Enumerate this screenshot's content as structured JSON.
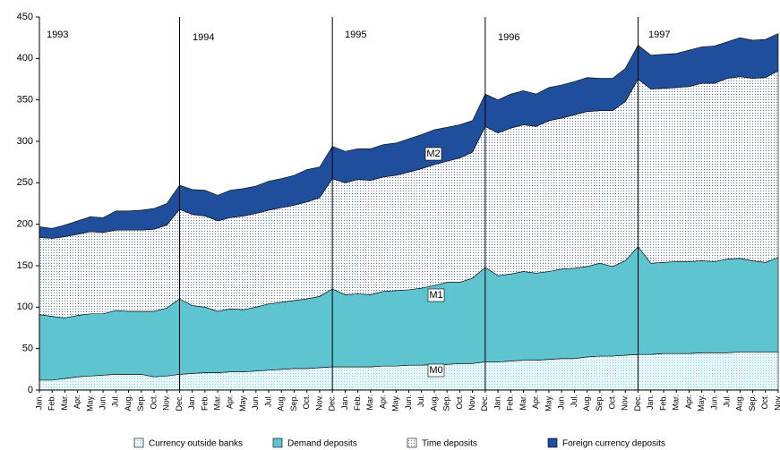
{
  "chart_data": {
    "type": "stacked_area",
    "categories": [
      "Jan.",
      "Feb.",
      "Mar.",
      "Apr.",
      "May.",
      "Jun.",
      "Jul.",
      "Aug.",
      "Sep.",
      "Oct.",
      "Nov.",
      "Dec.",
      "Jan.",
      "Feb.",
      "Mar.",
      "Apr.",
      "May.",
      "Jun.",
      "Jul.",
      "Aug.",
      "Sep.",
      "Oct.",
      "Nov.",
      "Dec.",
      "Jan.",
      "Feb.",
      "Mar.",
      "Apr.",
      "May.",
      "Jun.",
      "Jul.",
      "Aug.",
      "Sep.",
      "Oct.",
      "Nov.",
      "Dec.",
      "Jan.",
      "Feb.",
      "Mar.",
      "Apr.",
      "May.",
      "Jun.",
      "Jul.",
      "Aug.",
      "Sep.",
      "Oct.",
      "Nov.",
      "Dec.",
      "Jan.",
      "Feb.",
      "Mar.",
      "Apr.",
      "May.",
      "Jun.",
      "Jul.",
      "Aug.",
      "Sep.",
      "Oct.",
      "Nov."
    ],
    "years": [
      "1993",
      "1994",
      "1995",
      "1996",
      "1997"
    ],
    "aggregate_labels": [
      "M0",
      "M1",
      "M2"
    ],
    "series": [
      {
        "name": "Currency outside banks",
        "color": "#7fcfdc",
        "fill_style": "dotted",
        "values": [
          12,
          12,
          14,
          16,
          17,
          18,
          19,
          19,
          19,
          16,
          17,
          19,
          20,
          21,
          21,
          22,
          22,
          23,
          24,
          25,
          26,
          26,
          27,
          28,
          28,
          28,
          28,
          29,
          29,
          30,
          30,
          31,
          31,
          32,
          32,
          34,
          34,
          35,
          36,
          36,
          37,
          38,
          38,
          40,
          41,
          41,
          42,
          43,
          43,
          44,
          44,
          44,
          45,
          45,
          45,
          46,
          46,
          46,
          46
        ]
      },
      {
        "name": "Demand deposits",
        "color": "#5ec4cf",
        "fill_style": "solid",
        "values": [
          79,
          77,
          73,
          74,
          75,
          74,
          77,
          76,
          76,
          79,
          82,
          91,
          82,
          79,
          74,
          76,
          75,
          77,
          80,
          81,
          82,
          84,
          86,
          94,
          87,
          88,
          87,
          90,
          91,
          91,
          93,
          95,
          99,
          98,
          103,
          114,
          104,
          105,
          107,
          105,
          106,
          108,
          109,
          109,
          112,
          108,
          114,
          130,
          110,
          110,
          111,
          111,
          111,
          110,
          113,
          113,
          110,
          108,
          114
        ]
      },
      {
        "name": "Time deposits",
        "color": "#5a78c0",
        "fill_style": "dotted",
        "values": [
          93,
          94,
          98,
          98,
          99,
          98,
          97,
          98,
          98,
          99,
          100,
          108,
          110,
          110,
          109,
          110,
          113,
          113,
          113,
          114,
          115,
          117,
          119,
          133,
          135,
          138,
          138,
          138,
          139,
          142,
          144,
          146,
          146,
          150,
          152,
          170,
          172,
          176,
          177,
          177,
          182,
          182,
          185,
          187,
          184,
          188,
          192,
          202,
          210,
          210,
          210,
          211,
          214,
          215,
          218,
          219,
          220,
          223,
          225
        ]
      },
      {
        "name": "Foreign currency deposits",
        "color": "#1f4e9c",
        "fill_style": "solid",
        "values": [
          13,
          12,
          14,
          16,
          18,
          18,
          23,
          23,
          24,
          25,
          26,
          29,
          30,
          31,
          31,
          33,
          33,
          33,
          35,
          35,
          36,
          39,
          37,
          39,
          38,
          37,
          38,
          39,
          39,
          40,
          41,
          42,
          41,
          40,
          38,
          39,
          40,
          41,
          41,
          39,
          40,
          40,
          40,
          41,
          39,
          39,
          40,
          41,
          41,
          41,
          41,
          44,
          44,
          45,
          44,
          47,
          46,
          46,
          45
        ]
      }
    ],
    "ylim": [
      0,
      450
    ],
    "yticks": [
      0,
      50,
      100,
      150,
      200,
      250,
      300,
      350,
      400,
      450
    ]
  }
}
